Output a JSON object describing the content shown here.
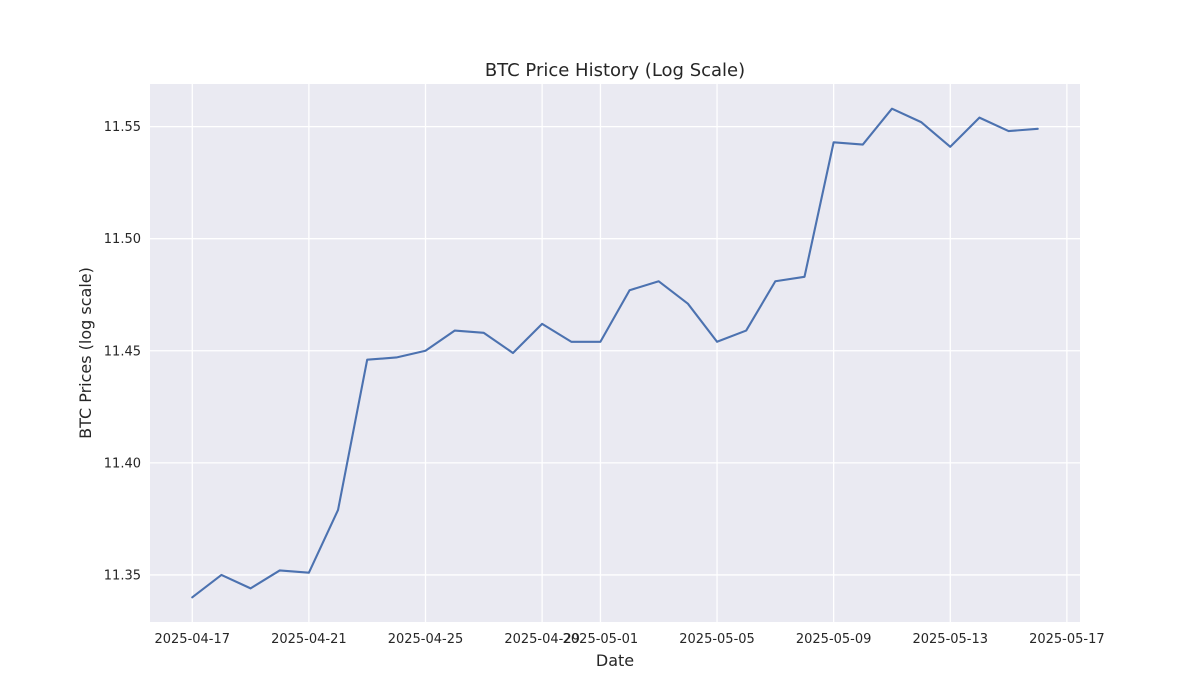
{
  "colors": {
    "plot_background": "#eaeaf2",
    "grid": "#ffffff",
    "line": "#4c72b0",
    "text": "#262626"
  },
  "chart_data": {
    "type": "line",
    "title": "BTC Price History (Log Scale)",
    "xlabel": "Date",
    "ylabel": "BTC Prices (log scale)",
    "x_ticks": [
      "2025-04-17",
      "2025-04-21",
      "2025-04-25",
      "2025-04-29",
      "2025-05-01",
      "2025-05-05",
      "2025-05-09",
      "2025-05-13",
      "2025-05-17"
    ],
    "y_ticks": [
      "11.35",
      "11.40",
      "11.45",
      "11.50",
      "11.55"
    ],
    "xlim": [
      "2025-04-15.55",
      "2025-05-17.45"
    ],
    "ylim": [
      11.329,
      11.569
    ],
    "grid": true,
    "series": [
      {
        "x": [
          "2025-04-17",
          "2025-04-18",
          "2025-04-19",
          "2025-04-20",
          "2025-04-21",
          "2025-04-22",
          "2025-04-23",
          "2025-04-24",
          "2025-04-25",
          "2025-04-26",
          "2025-04-27",
          "2025-04-28",
          "2025-04-29",
          "2025-04-30",
          "2025-05-01",
          "2025-05-02",
          "2025-05-03",
          "2025-05-04",
          "2025-05-05",
          "2025-05-06",
          "2025-05-07",
          "2025-05-08",
          "2025-05-09",
          "2025-05-10",
          "2025-05-11",
          "2025-05-12",
          "2025-05-13",
          "2025-05-14",
          "2025-05-15",
          "2025-05-16"
        ],
        "values": [
          11.34,
          11.35,
          11.344,
          11.352,
          11.351,
          11.379,
          11.446,
          11.447,
          11.45,
          11.459,
          11.458,
          11.449,
          11.462,
          11.454,
          11.454,
          11.477,
          11.481,
          11.471,
          11.454,
          11.459,
          11.481,
          11.483,
          11.543,
          11.542,
          11.558,
          11.552,
          11.541,
          11.554,
          11.548,
          11.549
        ]
      }
    ]
  }
}
